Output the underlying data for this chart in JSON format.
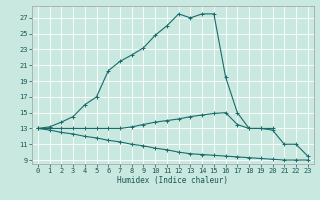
{
  "xlabel": "Humidex (Indice chaleur)",
  "bg_color": "#c8e8e0",
  "grid_color": "#ffffff",
  "line_color": "#1a6b6b",
  "xlim": [
    -0.5,
    23.5
  ],
  "ylim": [
    8.5,
    28.5
  ],
  "xticks": [
    0,
    1,
    2,
    3,
    4,
    5,
    6,
    7,
    8,
    9,
    10,
    11,
    12,
    13,
    14,
    15,
    16,
    17,
    18,
    19,
    20,
    21,
    22,
    23
  ],
  "yticks": [
    9,
    11,
    13,
    15,
    17,
    19,
    21,
    23,
    25,
    27
  ],
  "line1_x": [
    0,
    1,
    2,
    3,
    4,
    5,
    6,
    7,
    8,
    9,
    10,
    11,
    12,
    13,
    14,
    15,
    16,
    17,
    18,
    19,
    20
  ],
  "line1_y": [
    13,
    13.2,
    13.8,
    14.5,
    16.0,
    17.0,
    20.3,
    21.5,
    22.3,
    23.2,
    24.8,
    26.0,
    27.5,
    27.0,
    27.5,
    27.5,
    19.5,
    15.0,
    13.0,
    13.0,
    13.0
  ],
  "line2_x": [
    0,
    1,
    2,
    3,
    4,
    5,
    6,
    7,
    8,
    9,
    10,
    11,
    12,
    13,
    14,
    15,
    16,
    17,
    18,
    19,
    20,
    21,
    22,
    23
  ],
  "line2_y": [
    13,
    13,
    13,
    13,
    13,
    13,
    13,
    13,
    13.2,
    13.5,
    13.8,
    14.0,
    14.2,
    14.5,
    14.7,
    14.9,
    15.0,
    13.5,
    13.0,
    13.0,
    12.8,
    11.0,
    11.0,
    9.5
  ],
  "line3_x": [
    0,
    1,
    2,
    3,
    4,
    5,
    6,
    7,
    8,
    9,
    10,
    11,
    12,
    13,
    14,
    15,
    16,
    17,
    18,
    19,
    20,
    21,
    22,
    23
  ],
  "line3_y": [
    13,
    12.8,
    12.5,
    12.3,
    12.0,
    11.8,
    11.5,
    11.3,
    11.0,
    10.8,
    10.5,
    10.3,
    10.0,
    9.8,
    9.7,
    9.6,
    9.5,
    9.4,
    9.3,
    9.2,
    9.1,
    9.0,
    9.0,
    9.0
  ]
}
